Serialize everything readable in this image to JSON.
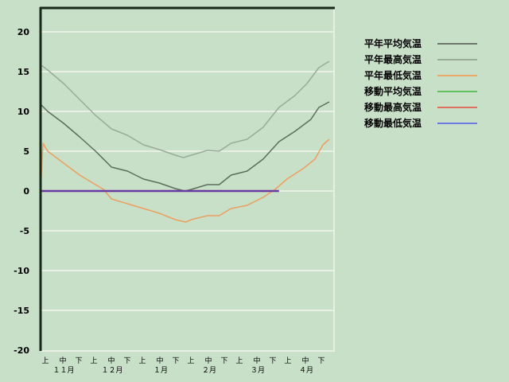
{
  "chart_data": {
    "type": "line",
    "title": "",
    "xlabel": "",
    "ylabel": "",
    "ylim": [
      -20,
      20
    ],
    "yticks": [
      20,
      15,
      10,
      5,
      0,
      -5,
      -10,
      -15,
      -20
    ],
    "xlim": [
      0,
      184
    ],
    "x_unit": "days from Nov 1",
    "grid": true,
    "legend_position": "right",
    "x_minor_labels": [
      "上",
      "中",
      "下",
      "上",
      "中",
      "下",
      "上",
      "中",
      "下",
      "上",
      "中",
      "下",
      "上",
      "中",
      "下",
      "上",
      "中",
      "下"
    ],
    "x_month_labels": [
      "１１月",
      "１２月",
      "１月",
      "２月",
      "３月",
      "４月"
    ],
    "series": [
      {
        "name": "平年平均気温",
        "color": "#5c6e5c",
        "legend_color": "#6b776b",
        "x": [
          0.5,
          4.5,
          14.5,
          24.5,
          34.5,
          44.5,
          54.5,
          64.5,
          74.5,
          84.5,
          90.5,
          94.5,
          104.5,
          112,
          119.5,
          129.5,
          139.5,
          149.5,
          159.5,
          169.5,
          174.5,
          181
        ],
        "y": [
          10.8,
          10,
          8.5,
          6.8,
          5,
          3,
          2.5,
          1.5,
          1,
          0.3,
          0,
          0.2,
          0.8,
          0.8,
          2,
          2.5,
          4,
          6.2,
          7.5,
          9,
          10.5,
          11.2
        ]
      },
      {
        "name": "平年最高気温",
        "color": "#9aab9a",
        "legend_color": "#9aab9a",
        "x": [
          0.5,
          4.5,
          14.5,
          24.5,
          34.5,
          44.5,
          54.5,
          64.5,
          74.5,
          84.5,
          89.5,
          94.5,
          104.5,
          112,
          119.5,
          129.5,
          139.5,
          149.5,
          159.5,
          167,
          174.5,
          181
        ],
        "y": [
          15.8,
          15.2,
          13.5,
          11.5,
          9.5,
          7.8,
          7,
          5.8,
          5.2,
          4.5,
          4.2,
          4.5,
          5.1,
          5.0,
          6,
          6.5,
          8,
          10.5,
          12,
          13.5,
          15.5,
          16.3
        ]
      },
      {
        "name": "平年最低気温",
        "color": "#eba060",
        "legend_color": "#e8a868",
        "x": [
          0,
          1.5,
          4.5,
          14.5,
          24.5,
          34.5,
          39.5,
          44.5,
          54.5,
          64.5,
          74.5,
          84.5,
          91,
          94.5,
          104.5,
          112,
          119.5,
          129.5,
          139.5,
          147,
          154.5,
          164.5,
          172,
          177,
          181
        ],
        "y": [
          0,
          6,
          5,
          3.5,
          2,
          0.8,
          0.2,
          -1,
          -1.6,
          -2.2,
          -2.8,
          -3.6,
          -3.9,
          -3.6,
          -3.1,
          -3.1,
          -2.2,
          -1.8,
          -0.8,
          0.2,
          1.5,
          2.8,
          4,
          5.8,
          6.5
        ]
      },
      {
        "name": "移動平均気温",
        "color": "#60c060",
        "legend_color": "#60c060",
        "x": [],
        "y": []
      },
      {
        "name": "移動最高気温",
        "color": "#e07060",
        "legend_color": "#e07060",
        "x": [],
        "y": []
      },
      {
        "name": "移動最低気温",
        "color": "#6a3aa0",
        "legend_color": "#6a78e0",
        "x": [
          0,
          149.5
        ],
        "y": [
          0,
          0
        ]
      }
    ]
  }
}
